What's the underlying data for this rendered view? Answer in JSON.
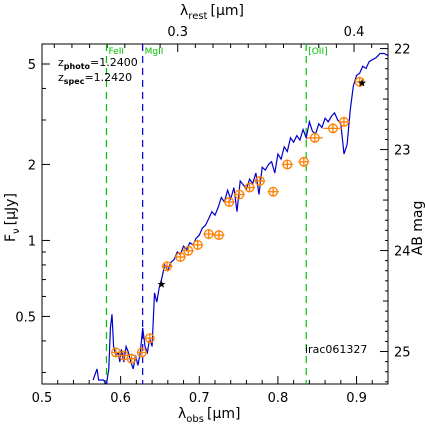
{
  "chart_data": {
    "type": "line",
    "xlabel_main": "λ",
    "xlabel_sub": "obs",
    "xlabel_unit": "[μm]",
    "x2label_main": "λ",
    "x2label_sub": "rest",
    "x2label_unit": "[μm]",
    "ylabel_main": "F",
    "ylabel_sub": "ν",
    "ylabel_unit": "[μJy]",
    "y2label": "AB mag",
    "xlim": [
      0.5,
      0.94
    ],
    "ylim": [
      0.27,
      6.0
    ],
    "y_scale": "log",
    "x_ticks": [
      0.5,
      0.6,
      0.7,
      0.8,
      0.9
    ],
    "x_tick_labels": [
      "0.5",
      "0.6",
      "0.7",
      "0.8",
      "0.9"
    ],
    "top_ticks": [
      0.3,
      0.4
    ],
    "top_tick_labels": [
      "0.3",
      "0.4"
    ],
    "y_ticks": [
      0.5,
      1,
      2,
      5
    ],
    "y_tick_labels": [
      "0.5",
      "1",
      "2",
      "5"
    ],
    "y2_ticks": [
      22,
      23,
      24,
      25
    ],
    "y2_tick_labels": [
      "22",
      "23",
      "24",
      "25"
    ],
    "annotations": {
      "z_photo_label": "z",
      "z_photo_sub": "photo",
      "z_photo_value": "=1.2400",
      "z_spec_label": "z",
      "z_spec_sub": "spec",
      "z_spec_value": "=1.2420",
      "object_id": "irac061327"
    },
    "emission_lines": [
      {
        "name": "FeII",
        "x": 0.582,
        "color": "#00c000",
        "style": "dashed"
      },
      {
        "name": "MgII",
        "x": 0.628,
        "color": "#0000cc",
        "style": "dashed"
      },
      {
        "name": "[OII]",
        "x": 0.836,
        "color": "#00c000",
        "style": "dashed"
      }
    ],
    "sed_model": {
      "color": "#0000cc",
      "x": [
        0.565,
        0.57,
        0.572,
        0.578,
        0.582,
        0.585,
        0.587,
        0.589,
        0.591,
        0.594,
        0.597,
        0.599,
        0.601,
        0.604,
        0.607,
        0.61,
        0.613,
        0.616,
        0.619,
        0.622,
        0.625,
        0.628,
        0.631,
        0.634,
        0.637,
        0.64,
        0.643,
        0.646,
        0.649,
        0.652,
        0.656,
        0.66,
        0.664,
        0.668,
        0.672,
        0.676,
        0.68,
        0.684,
        0.688,
        0.692,
        0.696,
        0.7,
        0.704,
        0.708,
        0.712,
        0.716,
        0.72,
        0.724,
        0.728,
        0.732,
        0.736,
        0.74,
        0.744,
        0.748,
        0.752,
        0.756,
        0.76,
        0.764,
        0.768,
        0.772,
        0.776,
        0.78,
        0.784,
        0.788,
        0.792,
        0.796,
        0.8,
        0.804,
        0.808,
        0.812,
        0.816,
        0.82,
        0.824,
        0.828,
        0.832,
        0.836,
        0.84,
        0.844,
        0.848,
        0.852,
        0.856,
        0.86,
        0.864,
        0.868,
        0.872,
        0.876,
        0.88,
        0.884,
        0.888,
        0.892,
        0.896,
        0.9,
        0.904,
        0.908,
        0.912,
        0.916,
        0.92,
        0.925,
        0.93,
        0.935,
        0.94
      ],
      "y": [
        0.28,
        0.31,
        0.28,
        0.28,
        0.27,
        0.31,
        0.45,
        0.51,
        0.38,
        0.35,
        0.36,
        0.33,
        0.37,
        0.33,
        0.38,
        0.36,
        0.33,
        0.31,
        0.35,
        0.32,
        0.36,
        0.45,
        0.38,
        0.36,
        0.41,
        0.38,
        0.62,
        0.57,
        0.65,
        0.7,
        0.8,
        0.76,
        0.82,
        0.84,
        0.9,
        0.88,
        0.95,
        0.92,
        0.98,
        0.96,
        1.02,
        1.05,
        1.12,
        1.15,
        1.22,
        1.3,
        1.26,
        1.35,
        1.48,
        1.42,
        1.58,
        1.46,
        1.62,
        1.3,
        1.72,
        1.66,
        1.6,
        1.75,
        1.68,
        1.85,
        1.52,
        1.95,
        1.9,
        2.0,
        2.05,
        1.85,
        2.2,
        2.1,
        2.35,
        2.25,
        2.55,
        2.45,
        2.6,
        2.5,
        2.75,
        2.55,
        2.95,
        2.7,
        2.65,
        2.9,
        2.8,
        3.05,
        2.95,
        3.1,
        3.2,
        3.0,
        2.9,
        2.2,
        2.4,
        3.3,
        4.1,
        4.5,
        4.6,
        4.9,
        4.8,
        5.1,
        5.2,
        5.3,
        5.5,
        5.5,
        5.4
      ]
    },
    "photometry": {
      "color": "#ff8000",
      "x": [
        0.594,
        0.604,
        0.614,
        0.627,
        0.637,
        0.659,
        0.676,
        0.686,
        0.698,
        0.712,
        0.725,
        0.738,
        0.751,
        0.764,
        0.777,
        0.794,
        0.812,
        0.833,
        0.847,
        0.87,
        0.884,
        0.904
      ],
      "y": [
        0.36,
        0.35,
        0.34,
        0.36,
        0.41,
        0.79,
        0.86,
        0.91,
        0.96,
        1.06,
        1.05,
        1.42,
        1.52,
        1.62,
        1.72,
        1.56,
        2.0,
        2.05,
        2.55,
        2.78,
        2.95,
        4.25
      ],
      "xerr": [
        0.006,
        0.006,
        0.006,
        0.006,
        0.006,
        0.007,
        0.007,
        0.007,
        0.007,
        0.007,
        0.007,
        0.007,
        0.007,
        0.007,
        0.007,
        0.007,
        0.007,
        0.007,
        0.01,
        0.012,
        0.007,
        0.004
      ]
    },
    "stars": {
      "color": "#000000",
      "x": [
        0.652,
        0.907
      ],
      "y": [
        0.67,
        4.2
      ]
    }
  }
}
